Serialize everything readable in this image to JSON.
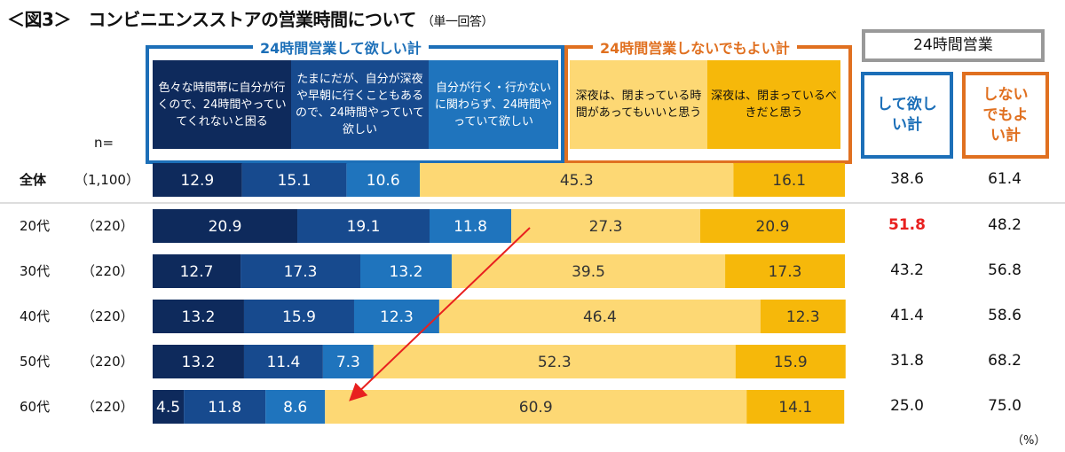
{
  "title": "＜図3＞　コンビニエンスストアの営業時間について",
  "subtitle": "（単一回答）",
  "n_label": "n=",
  "unit": "（%）",
  "colors": {
    "c1": "#0e2a5c",
    "c2": "#174a8e",
    "c3": "#1f74bd",
    "c4": "#fdd874",
    "c5": "#f6b80a",
    "blue": "#1c6fb8",
    "orange": "#e07020",
    "highlight": "#e8201f"
  },
  "groups": {
    "want": "24時間営業して欲しい計",
    "notneed": "24時間営業しないでもよい計",
    "summary": "24時間営業",
    "sum_want": "して欲しい計",
    "sum_notneed": "しないでもよい計"
  },
  "chart_data": {
    "type": "bar",
    "orientation": "horizontal-stacked-100",
    "series": [
      {
        "name": "色々な時間帯に自分が行くので、24時間やっていてくれないと困る",
        "values": [
          12.9,
          20.9,
          12.7,
          13.2,
          13.2,
          4.5
        ]
      },
      {
        "name": "たまにだが、自分が深夜や早朝に行くこともあるので、24時間やっていて欲しい",
        "values": [
          15.1,
          19.1,
          17.3,
          15.9,
          11.4,
          11.8
        ]
      },
      {
        "name": "自分が行く・行かないに関わらず、24時間やっていて欲しい",
        "values": [
          10.6,
          11.8,
          13.2,
          12.3,
          7.3,
          8.6
        ]
      },
      {
        "name": "深夜は、閉まっている時間があってもいいと思う",
        "values": [
          45.3,
          27.3,
          39.5,
          46.4,
          52.3,
          60.9
        ]
      },
      {
        "name": "深夜は、閉まっているべきだと思う",
        "values": [
          16.1,
          20.9,
          17.3,
          12.3,
          15.9,
          14.1
        ]
      }
    ],
    "categories": [
      "全体",
      "20代",
      "30代",
      "40代",
      "50代",
      "60代"
    ],
    "n": [
      "（1,100）",
      "（220）",
      "（220）",
      "（220）",
      "（220）",
      "（220）"
    ],
    "want_total": [
      "38.6",
      "51.8",
      "43.2",
      "41.4",
      "31.8",
      "25.0"
    ],
    "notneed_total": [
      "61.4",
      "48.2",
      "56.8",
      "58.6",
      "68.2",
      "75.0"
    ],
    "highlight": "20代 して欲しい計 51.8",
    "xlim": [
      0,
      100
    ]
  }
}
